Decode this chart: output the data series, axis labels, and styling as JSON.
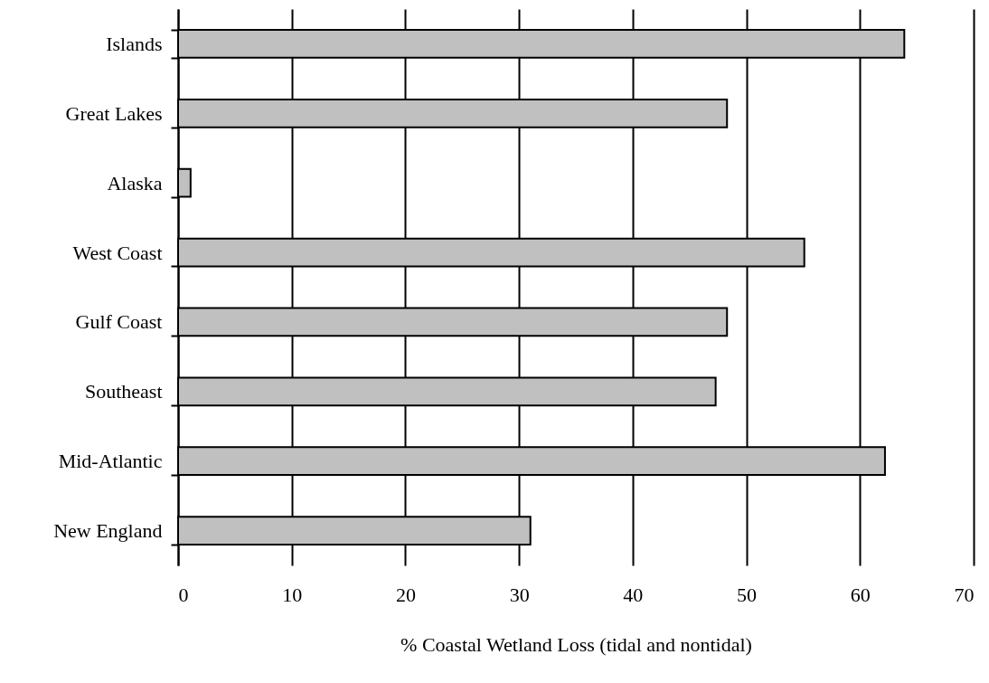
{
  "chart_data": {
    "type": "bar",
    "orientation": "horizontal",
    "xlabel": "% Coastal Wetland Loss (tidal and nontidal)",
    "categories": [
      "Islands",
      "Great Lakes",
      "Alaska",
      "West Coast",
      "Gulf Coast",
      "Southeast",
      "Mid-Atlantic",
      "New England"
    ],
    "values": [
      63.9,
      48.3,
      1.1,
      55.1,
      48.3,
      47.3,
      62.2,
      31
    ],
    "color": "#c0c0c0",
    "xlim": [
      0,
      70
    ],
    "xticks": [
      0,
      10,
      20,
      30,
      40,
      50,
      60,
      70
    ],
    "grid": "x"
  }
}
